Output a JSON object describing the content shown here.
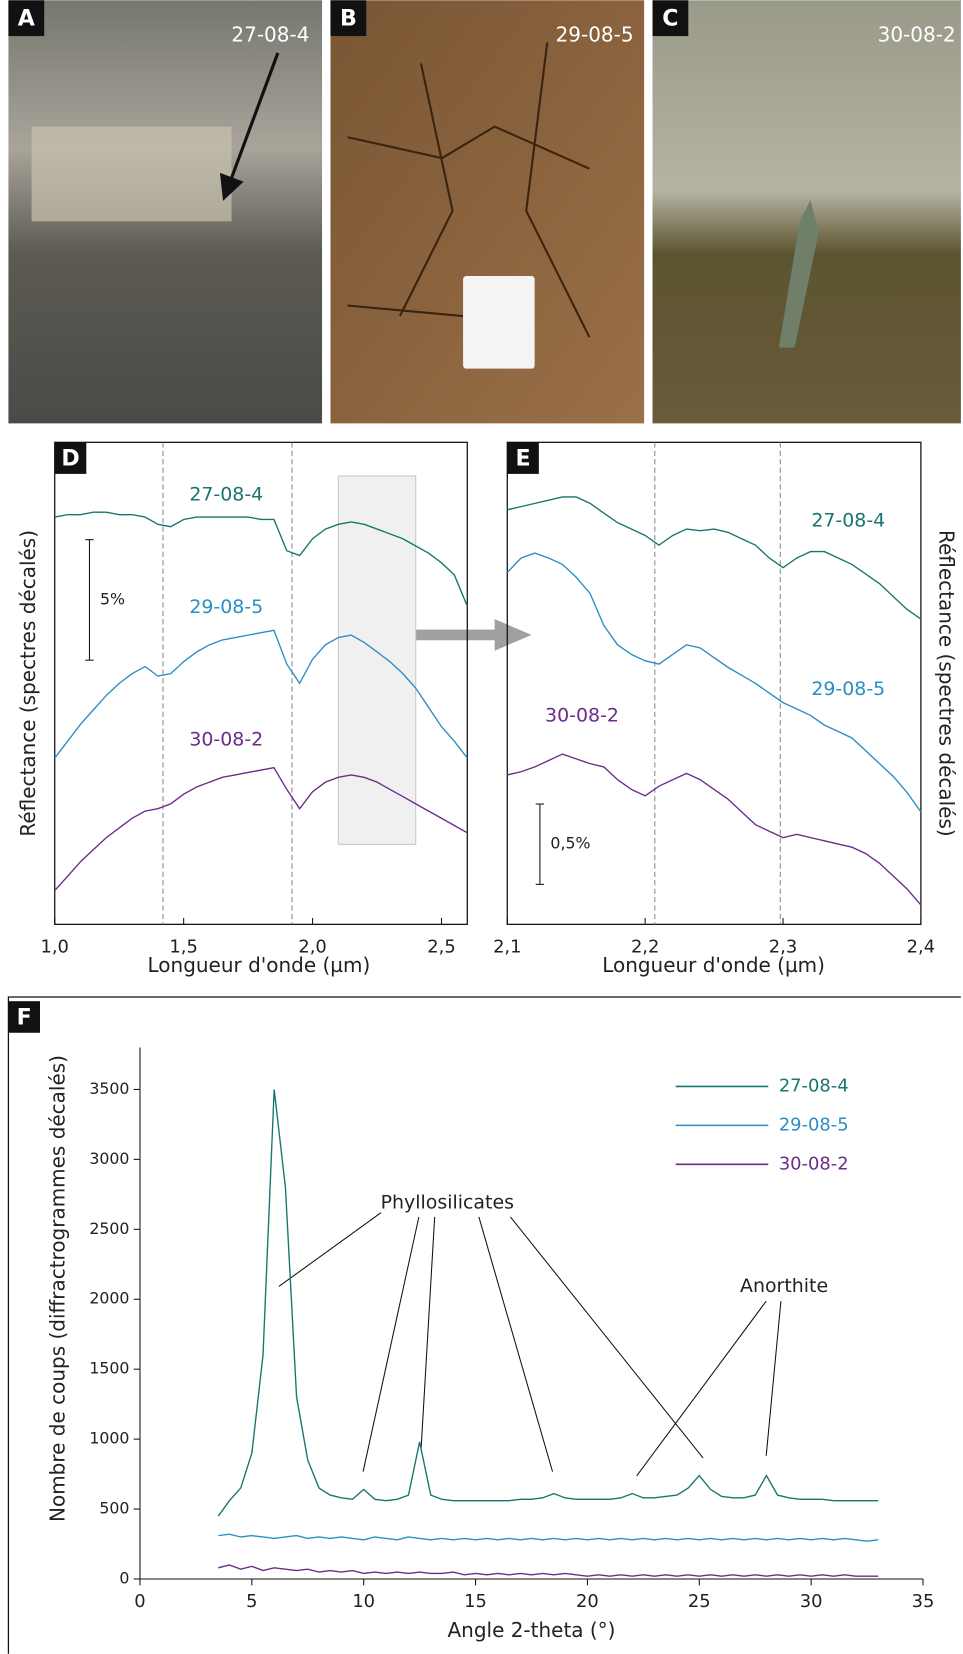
{
  "photos": [
    {
      "letter": "A",
      "label": "27-08-4"
    },
    {
      "letter": "B",
      "label": "29-08-5"
    },
    {
      "letter": "C",
      "label": "30-08-2"
    }
  ],
  "chart_data": [
    {
      "type": "line",
      "panel_label": "D",
      "x_label": "Longueur d'onde (µm)",
      "y_label": "Réflectance (spectres décalés)",
      "x": [
        1.0,
        1.05,
        1.1,
        1.15,
        1.2,
        1.25,
        1.3,
        1.35,
        1.4,
        1.45,
        1.5,
        1.55,
        1.6,
        1.65,
        1.7,
        1.75,
        1.8,
        1.85,
        1.9,
        1.95,
        2.0,
        2.05,
        2.1,
        2.15,
        2.2,
        2.25,
        2.3,
        2.35,
        2.4,
        2.45,
        2.5,
        2.55,
        2.6
      ],
      "xlim": [
        1.0,
        2.6
      ],
      "ylim": [
        0,
        20
      ],
      "xticks": [
        {
          "value": 1.0,
          "label": "1,0"
        },
        {
          "value": 1.5,
          "label": "1,5"
        },
        {
          "value": 2.0,
          "label": "2,0"
        },
        {
          "value": 2.5,
          "label": "2,5"
        }
      ],
      "vlines": [
        1.42,
        1.92
      ],
      "highlight": [
        2.1,
        2.4
      ],
      "scale_bar": {
        "value": 5,
        "label": "5%"
      },
      "series": [
        {
          "name": "27-08-4",
          "color": "#19766f",
          "values": [
            16.9,
            17.0,
            17.0,
            17.1,
            17.1,
            17.0,
            17.0,
            16.9,
            16.6,
            16.5,
            16.8,
            16.9,
            16.9,
            16.9,
            16.9,
            16.9,
            16.8,
            16.8,
            15.5,
            15.3,
            16.0,
            16.4,
            16.6,
            16.7,
            16.6,
            16.4,
            16.2,
            16.0,
            15.7,
            15.4,
            15.0,
            14.5,
            13.2
          ]
        },
        {
          "name": "29-08-5",
          "color": "#2b8fc4",
          "values": [
            6.9,
            7.6,
            8.3,
            8.9,
            9.5,
            10.0,
            10.4,
            10.7,
            10.3,
            10.4,
            10.9,
            11.3,
            11.6,
            11.8,
            11.9,
            12.0,
            12.1,
            12.2,
            10.8,
            10.0,
            11.0,
            11.6,
            11.9,
            12.0,
            11.7,
            11.3,
            10.9,
            10.4,
            9.8,
            9.0,
            8.2,
            7.6,
            6.9
          ]
        },
        {
          "name": "30-08-2",
          "color": "#6b2d8b",
          "values": [
            1.4,
            2.0,
            2.6,
            3.1,
            3.6,
            4.0,
            4.4,
            4.7,
            4.8,
            5.0,
            5.4,
            5.7,
            5.9,
            6.1,
            6.2,
            6.3,
            6.4,
            6.5,
            5.6,
            4.8,
            5.5,
            5.9,
            6.1,
            6.2,
            6.1,
            5.9,
            5.6,
            5.3,
            5.0,
            4.7,
            4.4,
            4.1,
            3.8
          ]
        }
      ]
    },
    {
      "type": "line",
      "panel_label": "E",
      "x_label": "Longueur d'onde (µm)",
      "y_label": "Réflectance (spectres décalés)",
      "x": [
        2.1,
        2.11,
        2.12,
        2.13,
        2.14,
        2.15,
        2.16,
        2.17,
        2.18,
        2.19,
        2.2,
        2.21,
        2.22,
        2.23,
        2.24,
        2.25,
        2.26,
        2.27,
        2.28,
        2.29,
        2.3,
        2.31,
        2.32,
        2.33,
        2.34,
        2.35,
        2.36,
        2.37,
        2.38,
        2.39,
        2.4
      ],
      "xlim": [
        2.1,
        2.4
      ],
      "ylim": [
        0,
        3
      ],
      "xticks": [
        {
          "value": 2.1,
          "label": "2,1"
        },
        {
          "value": 2.2,
          "label": "2,2"
        },
        {
          "value": 2.3,
          "label": "2,3"
        },
        {
          "value": 2.4,
          "label": "2,4"
        }
      ],
      "vlines": [
        2.207,
        2.298
      ],
      "scale_bar": {
        "value": 0.5,
        "label": "0,5%"
      },
      "series": [
        {
          "name": "27-08-4",
          "color": "#19766f",
          "values": [
            2.58,
            2.6,
            2.62,
            2.64,
            2.66,
            2.66,
            2.62,
            2.56,
            2.5,
            2.46,
            2.42,
            2.36,
            2.42,
            2.46,
            2.45,
            2.46,
            2.44,
            2.4,
            2.36,
            2.28,
            2.22,
            2.28,
            2.32,
            2.32,
            2.28,
            2.24,
            2.18,
            2.12,
            2.04,
            1.96,
            1.9
          ]
        },
        {
          "name": "29-08-5",
          "color": "#2b8fc4",
          "values": [
            2.19,
            2.28,
            2.31,
            2.28,
            2.24,
            2.16,
            2.06,
            1.86,
            1.74,
            1.68,
            1.64,
            1.62,
            1.68,
            1.74,
            1.72,
            1.66,
            1.6,
            1.55,
            1.5,
            1.44,
            1.38,
            1.34,
            1.3,
            1.24,
            1.2,
            1.16,
            1.08,
            1.0,
            0.92,
            0.82,
            0.7
          ]
        },
        {
          "name": "30-08-2",
          "color": "#6b2d8b",
          "values": [
            0.93,
            0.95,
            0.98,
            1.02,
            1.06,
            1.03,
            1.0,
            0.98,
            0.9,
            0.84,
            0.8,
            0.86,
            0.9,
            0.94,
            0.9,
            0.84,
            0.78,
            0.7,
            0.62,
            0.58,
            0.54,
            0.56,
            0.54,
            0.52,
            0.5,
            0.48,
            0.44,
            0.38,
            0.3,
            0.22,
            0.12
          ]
        }
      ]
    },
    {
      "type": "line",
      "panel_label": "F",
      "x_label": "Angle 2-theta (°)",
      "y_label": "Nombre de coups (diffractrogrammes décalés)",
      "x": [
        3.5,
        4,
        4.5,
        5,
        5.5,
        6,
        6.5,
        7,
        7.5,
        8,
        8.5,
        9,
        9.5,
        10,
        10.5,
        11,
        11.5,
        12,
        12.5,
        13,
        13.5,
        14,
        14.5,
        15,
        15.5,
        16,
        16.5,
        17,
        17.5,
        18,
        18.5,
        19,
        19.5,
        20,
        20.5,
        21,
        21.5,
        22,
        22.5,
        23,
        23.5,
        24,
        24.5,
        25,
        25.5,
        26,
        26.5,
        27,
        27.5,
        28,
        28.5,
        29,
        29.5,
        30,
        30.5,
        31,
        31.5,
        32,
        32.5,
        33
      ],
      "xlim": [
        0,
        35
      ],
      "ylim": [
        0,
        3800
      ],
      "xticks": [
        0,
        5,
        10,
        15,
        20,
        25,
        30,
        35
      ],
      "yticks": [
        0,
        500,
        1000,
        1500,
        2000,
        2500,
        3000,
        3500
      ],
      "legend": "upper right",
      "annotations": [
        "Phyllosilicates",
        "Anorthite"
      ],
      "series": [
        {
          "name": "27-08-4",
          "color": "#19766f",
          "values": [
            450,
            560,
            650,
            900,
            1600,
            3500,
            2800,
            1300,
            850,
            650,
            600,
            580,
            570,
            640,
            570,
            560,
            570,
            600,
            980,
            600,
            570,
            560,
            560,
            560,
            560,
            560,
            560,
            570,
            570,
            580,
            610,
            580,
            570,
            570,
            570,
            570,
            580,
            610,
            580,
            580,
            590,
            600,
            650,
            740,
            640,
            590,
            580,
            580,
            600,
            740,
            600,
            580,
            570,
            570,
            570,
            560,
            560,
            560,
            560,
            560
          ]
        },
        {
          "name": "29-08-5",
          "color": "#2b8fc4",
          "values": [
            310,
            320,
            300,
            310,
            300,
            290,
            300,
            310,
            290,
            300,
            290,
            300,
            290,
            280,
            300,
            290,
            280,
            300,
            290,
            280,
            290,
            280,
            290,
            280,
            290,
            280,
            290,
            280,
            290,
            280,
            290,
            280,
            290,
            280,
            290,
            280,
            290,
            280,
            290,
            280,
            290,
            280,
            290,
            280,
            290,
            280,
            290,
            280,
            290,
            280,
            290,
            280,
            290,
            280,
            290,
            280,
            290,
            280,
            270,
            280
          ]
        },
        {
          "name": "30-08-2",
          "color": "#6b2d8b",
          "values": [
            80,
            100,
            70,
            90,
            60,
            80,
            70,
            60,
            70,
            50,
            60,
            50,
            60,
            40,
            50,
            40,
            50,
            40,
            50,
            40,
            40,
            50,
            30,
            40,
            30,
            40,
            30,
            40,
            30,
            40,
            30,
            40,
            30,
            20,
            30,
            20,
            30,
            20,
            30,
            20,
            30,
            20,
            30,
            20,
            30,
            20,
            30,
            20,
            30,
            20,
            30,
            20,
            30,
            20,
            30,
            20,
            30,
            20,
            20,
            20
          ]
        }
      ]
    }
  ]
}
